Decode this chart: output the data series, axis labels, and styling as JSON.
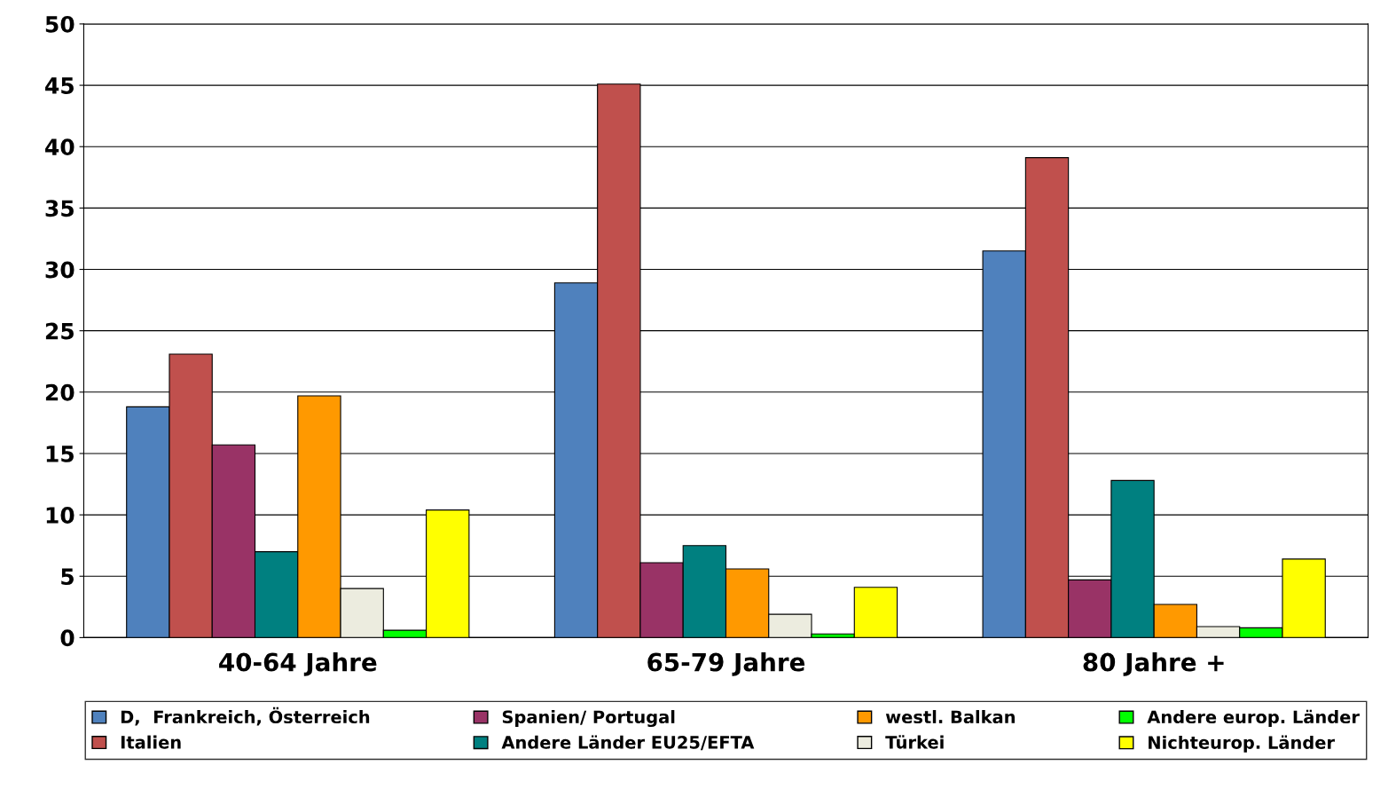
{
  "chart_data": {
    "type": "bar",
    "categories": [
      "40-64 Jahre",
      "65-79 Jahre",
      "80 Jahre +"
    ],
    "series": [
      {
        "name": "D,  Frankreich, Österreich",
        "color": "#4f81bd",
        "values": [
          18.8,
          28.9,
          31.5
        ]
      },
      {
        "name": "Italien",
        "color": "#c0504d",
        "values": [
          23.1,
          45.1,
          39.1
        ]
      },
      {
        "name": "Spanien/ Portugal",
        "color": "#993366",
        "values": [
          15.7,
          6.1,
          4.7
        ]
      },
      {
        "name": "Andere Länder EU25/EFTA",
        "color": "#008080",
        "values": [
          7.0,
          7.5,
          12.8
        ]
      },
      {
        "name": "westl. Balkan",
        "color": "#ff9900",
        "values": [
          19.7,
          5.6,
          2.7
        ]
      },
      {
        "name": "Türkei",
        "color": "#ececdf",
        "values": [
          4.0,
          1.9,
          0.9
        ]
      },
      {
        "name": "Andere europ. Länder",
        "color": "#00ff00",
        "values": [
          0.6,
          0.3,
          0.8
        ]
      },
      {
        "name": "Nichteurop. Länder",
        "color": "#ffff00",
        "values": [
          10.4,
          4.1,
          6.4
        ]
      }
    ],
    "ylim": [
      0,
      50
    ],
    "yticks": [
      0,
      5,
      10,
      15,
      20,
      25,
      30,
      35,
      40,
      45,
      50
    ],
    "grid": "y",
    "legend": "bottom"
  }
}
